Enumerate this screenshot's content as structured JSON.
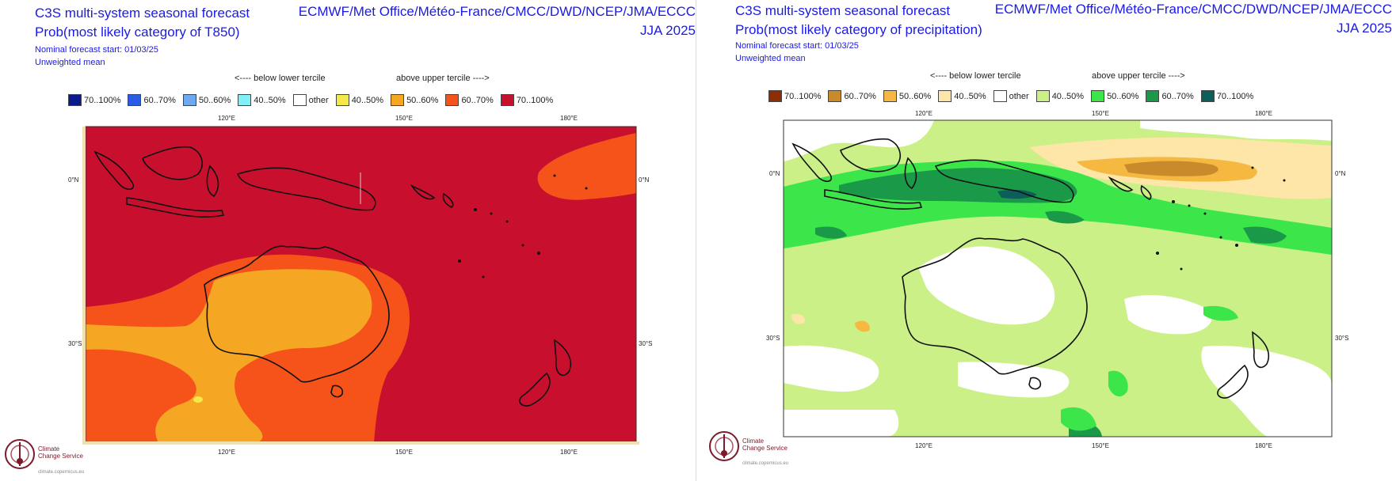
{
  "panels": [
    {
      "title_line1": "C3S multi-system seasonal forecast",
      "title_line2": "Prob(most likely category of T850)",
      "nominal_start": "Nominal forecast start: 01/03/25",
      "weighting": "Unweighted mean",
      "agencies": "ECMWF/Met Office/Météo-France/CMCC/DWD/NCEP/JMA/ECCC",
      "season": "JJA 2025",
      "below_label": "<---- below lower tercile",
      "above_label": "above upper tercile ---->",
      "legend": [
        {
          "label": "70..100%",
          "color": "#0d1a8c"
        },
        {
          "label": "60..70%",
          "color": "#2b5ce6"
        },
        {
          "label": "50..60%",
          "color": "#6fa8f0"
        },
        {
          "label": "40..50%",
          "color": "#7ff0f5"
        },
        {
          "label": "other",
          "color": "#ffffff"
        },
        {
          "label": "40..50%",
          "color": "#f5e84a"
        },
        {
          "label": "50..60%",
          "color": "#f5a623"
        },
        {
          "label": "60..70%",
          "color": "#f5531a"
        },
        {
          "label": "70..100%",
          "color": "#c8102e"
        }
      ],
      "lon_labels": [
        "120°E",
        "150°E",
        "180°E"
      ],
      "lat_labels": [
        "0°N",
        "30°S"
      ]
    },
    {
      "title_line1": "C3S multi-system seasonal forecast",
      "title_line2": "Prob(most likely category of precipitation)",
      "nominal_start": "Nominal forecast start: 01/03/25",
      "weighting": "Unweighted mean",
      "agencies": "ECMWF/Met Office/Météo-France/CMCC/DWD/NCEP/JMA/ECCC",
      "season": "JJA 2025",
      "below_label": "<---- below lower tercile",
      "above_label": "above upper tercile ---->",
      "legend": [
        {
          "label": "70..100%",
          "color": "#8c2d04"
        },
        {
          "label": "60..70%",
          "color": "#c88a2b"
        },
        {
          "label": "50..60%",
          "color": "#f5b840"
        },
        {
          "label": "40..50%",
          "color": "#fde6a8"
        },
        {
          "label": "other",
          "color": "#ffffff"
        },
        {
          "label": "40..50%",
          "color": "#ccf088"
        },
        {
          "label": "50..60%",
          "color": "#3ce64a"
        },
        {
          "label": "60..70%",
          "color": "#1a9a48"
        },
        {
          "label": "70..100%",
          "color": "#0d5e5a"
        }
      ],
      "lon_labels": [
        "120°E",
        "150°E",
        "180°E"
      ],
      "lat_labels": [
        "0°N",
        "30°S"
      ]
    }
  ],
  "logo": {
    "name_line1": "Climate",
    "name_line2": "Change Service",
    "url": "climate.copernicus.eu"
  }
}
